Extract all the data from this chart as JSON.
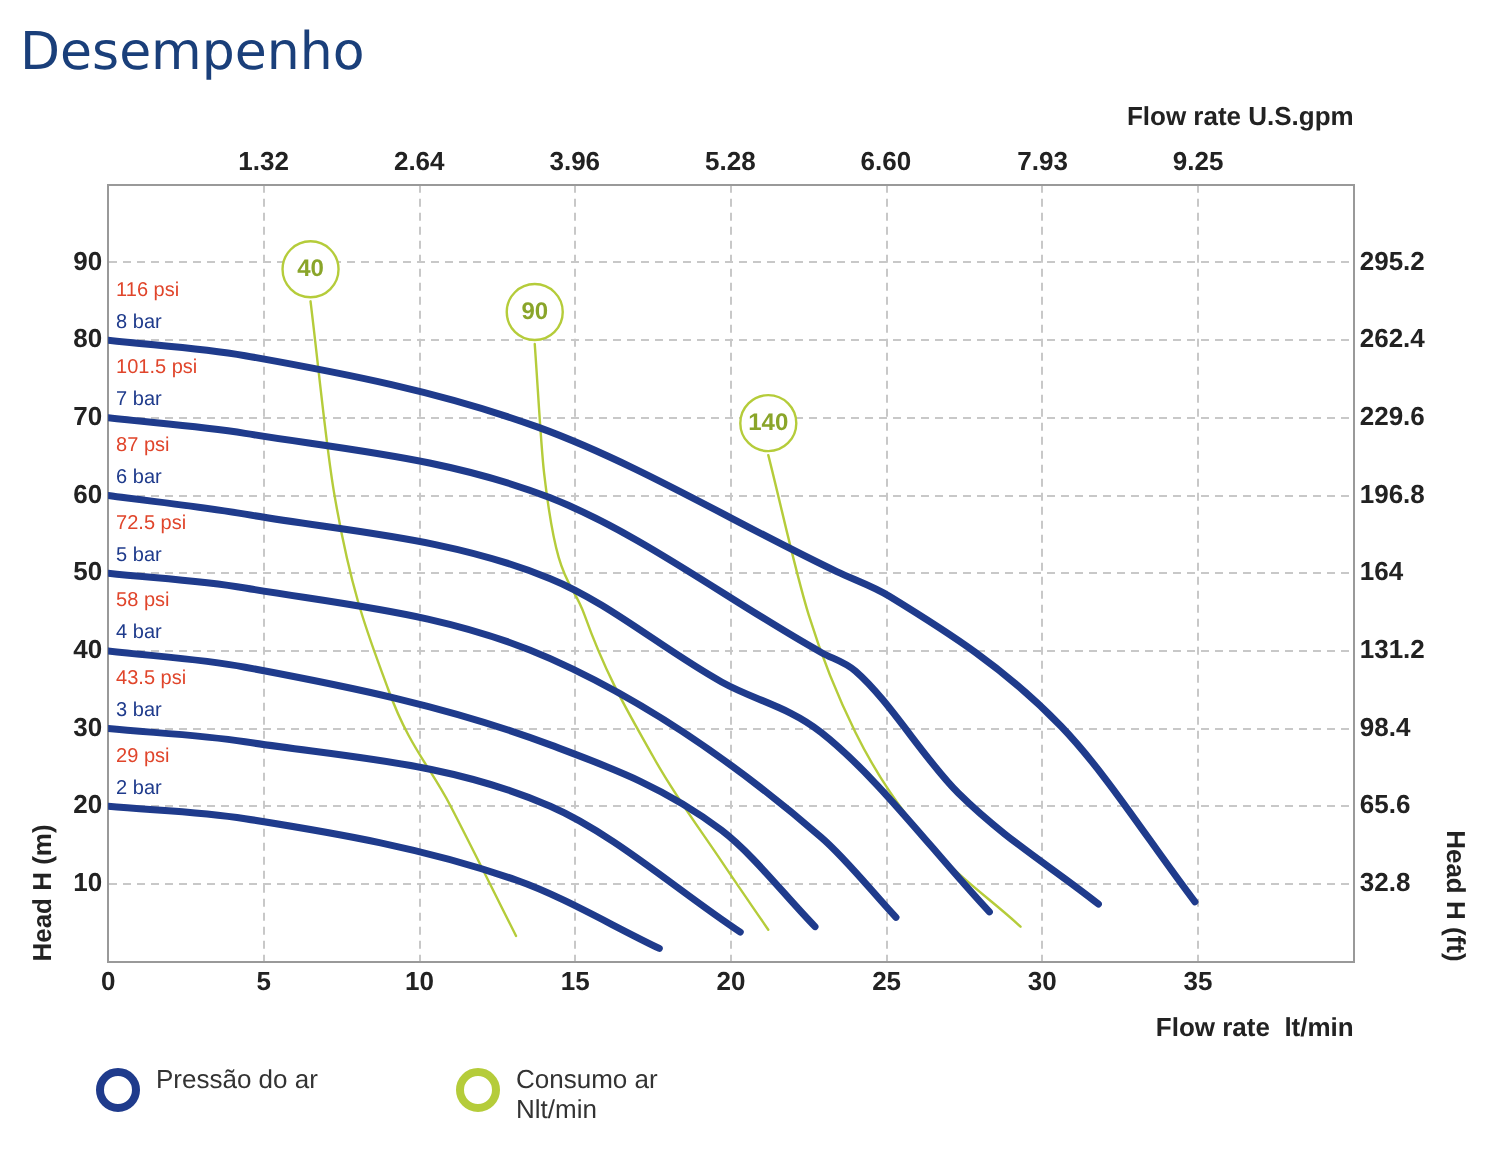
{
  "chart_data": {
    "type": "line",
    "title": "Desempenho",
    "xlabel": "Flow rate  lt/min",
    "x2label": "Flow rate U.S.gpm",
    "ylabel": "Head H (m)",
    "y2label": "Head H (ft)",
    "xlim": [
      0,
      40
    ],
    "xticks": [
      0,
      5,
      10,
      15,
      20,
      25,
      30,
      35
    ],
    "x2lim": [
      0,
      10.57
    ],
    "x2ticks": [
      1.32,
      2.64,
      3.96,
      5.28,
      {
        "value": 6.6,
        "label": "6.60"
      },
      7.93,
      9.25
    ],
    "ylim": [
      0,
      100
    ],
    "yticks": [
      10,
      20,
      30,
      40,
      50,
      60,
      70,
      80,
      90
    ],
    "y2lim": [
      0,
      328
    ],
    "y2ticks": [
      32.8,
      65.6,
      98.4,
      131.2,
      164,
      196.8,
      229.6,
      262.4,
      295.2
    ],
    "grid": true,
    "marker": "none",
    "series": [
      {
        "name": "8 bar",
        "color": "#1f3b8c",
        "x": [
          0,
          4.4,
          13.8,
          23.4,
          25.1,
          30.6,
          34.9
        ],
        "values": [
          80,
          78,
          68.8,
          50.2,
          47,
          30.3,
          7.7
        ]
      },
      {
        "name": "7 bar",
        "color": "#1f3b8c",
        "x": [
          0,
          4.4,
          14.2,
          22.9,
          24,
          27.3,
          31.8
        ],
        "values": [
          70,
          68,
          59.7,
          39.8,
          37.4,
          21.7,
          7.4
        ]
      },
      {
        "name": "6 bar",
        "color": "#1f3b8c",
        "x": [
          0,
          4.4,
          14.2,
          19.7,
          22.9,
          28.3
        ],
        "values": [
          60,
          57.6,
          49.3,
          36,
          29.5,
          6.4
        ]
      },
      {
        "name": "5 bar",
        "color": "#1f3b8c",
        "x": [
          0,
          4.4,
          14.2,
          22.9,
          25.3
        ],
        "values": [
          50,
          48.1,
          39,
          16,
          5.7
        ]
      },
      {
        "name": "4 bar",
        "color": "#1f3b8c",
        "x": [
          0,
          4.4,
          14.2,
          19.7,
          22.7
        ],
        "values": [
          40,
          37.9,
          27.9,
          16.9,
          4.5
        ]
      },
      {
        "name": "3 bar",
        "color": "#1f3b8c",
        "x": [
          0,
          4.4,
          14.2,
          20.3
        ],
        "values": [
          30,
          28.3,
          20,
          3.8
        ]
      },
      {
        "name": "2 bar",
        "color": "#1f3b8c",
        "x": [
          0,
          4.4,
          13.1,
          17.7
        ],
        "values": [
          20,
          18.4,
          10.5,
          1.7
        ]
      },
      {
        "name": "40",
        "color": "#b5cc3a",
        "x": [
          6.5,
          7.25,
          9,
          11,
          13.1
        ],
        "values": [
          85,
          60.5,
          35,
          20,
          3.3
        ]
      },
      {
        "name": "90",
        "color": "#b5cc3a",
        "x": [
          13.7,
          14,
          15.3,
          17.5,
          19.7,
          21.2
        ],
        "values": [
          79.5,
          62.9,
          44.6,
          26.4,
          12.9,
          4.1
        ]
      },
      {
        "name": "140",
        "color": "#b5cc3a",
        "x": [
          21.2,
          22.5,
          24,
          26.2,
          29.3
        ],
        "values": [
          65.2,
          44.6,
          29.5,
          16,
          4.5
        ]
      }
    ],
    "annotations": [
      "116 psi",
      "101.5 psi",
      "87 psi",
      "72.5 psi",
      "58 psi",
      "43.5 psi",
      "29 psi",
      "Pressão do ar",
      "Consumo ar Nlt/min"
    ]
  }
}
